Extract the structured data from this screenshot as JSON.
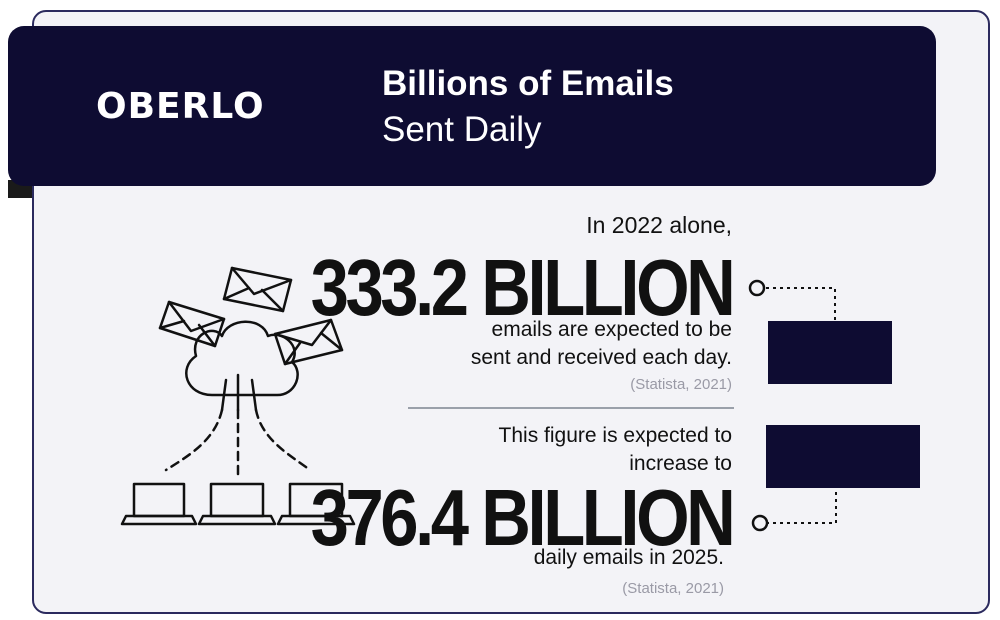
{
  "brand": {
    "logo": "OBERLO"
  },
  "header": {
    "title": "Billions of Emails",
    "subtitle": "Sent Daily"
  },
  "stat1": {
    "intro": "In 2022 alone,",
    "value": "333.2 BILLION",
    "desc_line1": "emails are expected to be",
    "desc_line2": "sent and received each day.",
    "source": "(Statista, 2021)"
  },
  "stat2": {
    "intro_line1": "This figure is expected to",
    "intro_line2": "increase to",
    "value": "376.4 BILLION",
    "desc": "daily emails in 2025.",
    "source": "(Statista, 2021)"
  },
  "colors": {
    "navy": "#0e0c32",
    "border": "#2b2a5e",
    "background": "#f3f3f7",
    "source_gray": "#9a9aa6"
  },
  "icons": [
    "envelope-icon",
    "cloud-icon",
    "laptop-icon"
  ]
}
